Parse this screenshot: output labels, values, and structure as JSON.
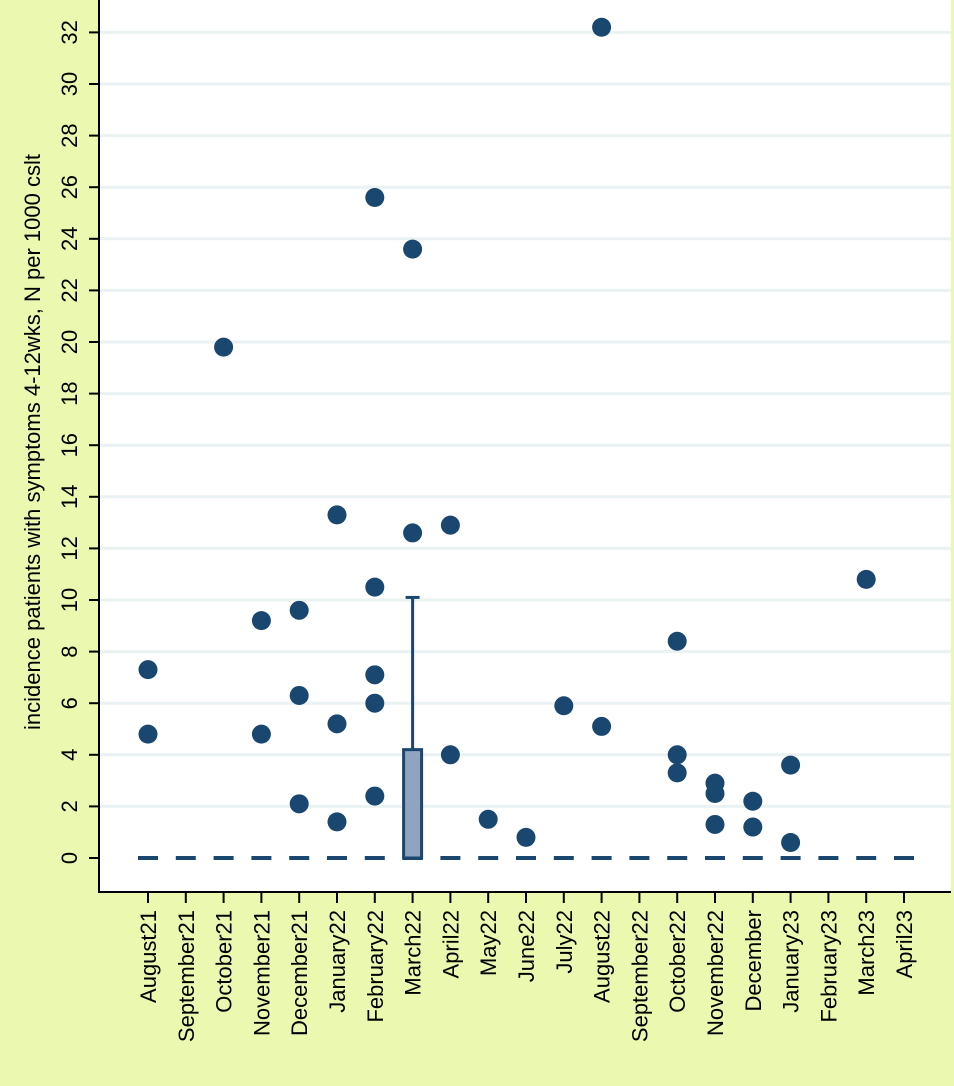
{
  "chart_data": {
    "type": "box",
    "title": "",
    "ylabel": "incidence patients with symptoms 4-12wks, N per 1000 cslt",
    "xlabel": "",
    "ylim": [
      0,
      33
    ],
    "yticks": [
      0,
      2,
      4,
      6,
      8,
      10,
      12,
      14,
      16,
      18,
      20,
      22,
      24,
      26,
      28,
      30,
      32
    ],
    "grid": true,
    "categories": [
      "August21",
      "September21",
      "October21",
      "November21",
      "December21",
      "January22",
      "February22",
      "March22",
      "April22",
      "May22",
      "June22",
      "July22",
      "August22",
      "September22",
      "October22",
      "November22",
      "December",
      "January23",
      "February23",
      "March23",
      "April23"
    ],
    "medians": [
      0,
      0,
      0,
      0,
      0,
      0,
      0,
      0,
      0,
      0,
      0,
      0,
      0,
      0,
      0,
      0,
      0,
      0,
      0,
      0,
      0
    ],
    "boxes": [
      {
        "category": "March22",
        "q1": 0,
        "median": 0,
        "q3": 4.2,
        "whisker_low": 0,
        "whisker_high": 10.1
      }
    ],
    "outliers": [
      {
        "category": "August21",
        "values": [
          7.3,
          4.8
        ]
      },
      {
        "category": "October21",
        "values": [
          19.8
        ]
      },
      {
        "category": "November21",
        "values": [
          9.2,
          4.8
        ]
      },
      {
        "category": "December21",
        "values": [
          9.6,
          6.3,
          2.1
        ]
      },
      {
        "category": "January22",
        "values": [
          13.3,
          5.2,
          1.4
        ]
      },
      {
        "category": "February22",
        "values": [
          25.6,
          10.5,
          7.1,
          6.0,
          2.4
        ]
      },
      {
        "category": "March22",
        "values": [
          23.6,
          12.6
        ]
      },
      {
        "category": "April22",
        "values": [
          12.9,
          4.0
        ]
      },
      {
        "category": "May22",
        "values": [
          1.5
        ]
      },
      {
        "category": "June22",
        "values": [
          0.8
        ]
      },
      {
        "category": "July22",
        "values": [
          5.9
        ]
      },
      {
        "category": "August22",
        "values": [
          32.2,
          5.1
        ]
      },
      {
        "category": "October22",
        "values": [
          8.4,
          4.0,
          3.3
        ]
      },
      {
        "category": "November22",
        "values": [
          2.9,
          2.5,
          1.3
        ]
      },
      {
        "category": "December",
        "values": [
          2.2,
          1.2
        ]
      },
      {
        "category": "January23",
        "values": [
          3.6,
          0.6
        ]
      },
      {
        "category": "March23",
        "values": [
          10.8
        ]
      }
    ],
    "colors": {
      "background": "#eaf8b0",
      "plot_background": "#ffffff",
      "grid": "#eaf2f3",
      "marker": "#1a476f",
      "box_fill": "#90a4c0"
    }
  }
}
